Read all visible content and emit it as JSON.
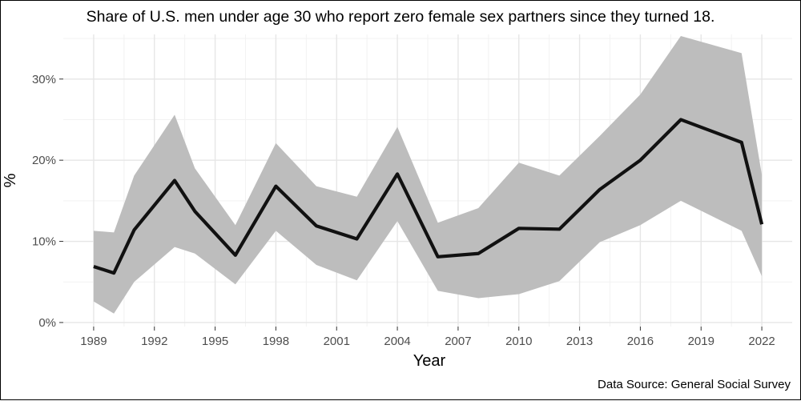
{
  "chart_data": {
    "type": "line",
    "title": "Share of U.S. men under age 30 who report zero female sex partners since they turned 18.",
    "xlabel": "Year",
    "ylabel": "%",
    "caption": "Data Source: General Social Survey",
    "x_ticks": [
      1989,
      1992,
      1995,
      1998,
      2001,
      2004,
      2007,
      2010,
      2013,
      2016,
      2019,
      2022
    ],
    "y_ticks": [
      0,
      10,
      20,
      30
    ],
    "y_tick_labels": [
      "0%",
      "10%",
      "20%",
      "30%"
    ],
    "xlim": [
      1987.5,
      2023.5
    ],
    "ylim": [
      -0.5,
      35.5
    ],
    "grid": true,
    "legend": "none",
    "series": [
      {
        "x": [
          1989,
          1990,
          1991,
          1993,
          1994,
          1996,
          1998,
          2000,
          2002,
          2004,
          2006,
          2008,
          2010,
          2012,
          2014,
          2016,
          2018,
          2021,
          2022
        ],
        "values": [
          6.9,
          6.1,
          11.4,
          17.5,
          13.7,
          8.3,
          16.8,
          11.9,
          10.3,
          18.3,
          8.1,
          8.5,
          11.6,
          11.5,
          16.4,
          20.0,
          25.0,
          22.2,
          12.1
        ],
        "lower": [
          2.6,
          1.1,
          5.0,
          9.3,
          8.5,
          4.7,
          11.3,
          7.1,
          5.2,
          12.5,
          3.9,
          3.0,
          3.5,
          5.1,
          9.9,
          12.0,
          15.0,
          11.3,
          5.7
        ],
        "upper": [
          11.3,
          11.1,
          18.1,
          25.6,
          19.0,
          12.0,
          22.1,
          16.8,
          15.5,
          24.1,
          12.3,
          14.1,
          19.7,
          18.1,
          23.0,
          28.1,
          35.3,
          33.2,
          18.2
        ]
      }
    ],
    "colors": {
      "line": "#111111",
      "ribbon": "#bdbdbd",
      "grid_major": "#e6e6e6",
      "grid_minor": "#f2f2f2",
      "tick_text": "#4d4d4d"
    }
  }
}
